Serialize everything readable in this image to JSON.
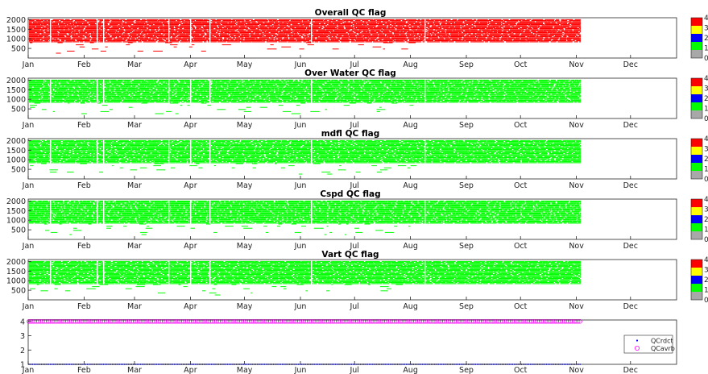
{
  "chart_data": [
    {
      "type": "heatmap",
      "title": "Overall QC flag",
      "x_tick_labels": [
        "Jan",
        "Feb",
        "Mar",
        "Apr",
        "May",
        "Jun",
        "Jul",
        "Aug",
        "Sep",
        "Oct",
        "Nov",
        "Dec"
      ],
      "y_ticks": [
        500,
        1000,
        1500,
        2000
      ],
      "ylim": [
        0,
        2100
      ],
      "data_extent": {
        "start": "Jan 1",
        "end": "Nov 2",
        "ymin": 250,
        "ymax": 2000,
        "core_ymin": 800
      },
      "dominant_flag": 4,
      "colorbar": {
        "ticks": [
          0,
          1,
          2,
          3,
          4
        ],
        "colors": [
          "#a8a8a8",
          "#00ff00",
          "#0000ff",
          "#ffff00",
          "#ff0000"
        ]
      }
    },
    {
      "type": "heatmap",
      "title": "Over Water QC flag",
      "x_tick_labels": [
        "Jan",
        "Feb",
        "Mar",
        "Apr",
        "May",
        "Jun",
        "Jul",
        "Aug",
        "Sep",
        "Oct",
        "Nov",
        "Dec"
      ],
      "y_ticks": [
        500,
        1000,
        1500,
        2000
      ],
      "ylim": [
        0,
        2100
      ],
      "data_extent": {
        "start": "Jan 1",
        "end": "Nov 2",
        "ymin": 250,
        "ymax": 2000,
        "core_ymin": 800
      },
      "dominant_flag": 1,
      "colorbar": {
        "ticks": [
          0,
          1,
          2,
          3,
          4
        ],
        "colors": [
          "#a8a8a8",
          "#00ff00",
          "#0000ff",
          "#ffff00",
          "#ff0000"
        ]
      }
    },
    {
      "type": "heatmap",
      "title": "mdfl QC flag",
      "x_tick_labels": [
        "Jan",
        "Feb",
        "Mar",
        "Apr",
        "May",
        "Jun",
        "Jul",
        "Aug",
        "Sep",
        "Oct",
        "Nov",
        "Dec"
      ],
      "y_ticks": [
        500,
        1000,
        1500,
        2000
      ],
      "ylim": [
        0,
        2100
      ],
      "data_extent": {
        "start": "Jan 1",
        "end": "Nov 2",
        "ymin": 250,
        "ymax": 2000,
        "core_ymin": 800
      },
      "dominant_flag": 1,
      "colorbar": {
        "ticks": [
          0,
          1,
          2,
          3,
          4
        ],
        "colors": [
          "#a8a8a8",
          "#00ff00",
          "#0000ff",
          "#ffff00",
          "#ff0000"
        ]
      }
    },
    {
      "type": "heatmap",
      "title": "Cspd QC flag",
      "x_tick_labels": [
        "Jan",
        "Feb",
        "Mar",
        "Apr",
        "May",
        "Jun",
        "Jul",
        "Aug",
        "Sep",
        "Oct",
        "Nov",
        "Dec"
      ],
      "y_ticks": [
        500,
        1000,
        1500,
        2000
      ],
      "ylim": [
        0,
        2100
      ],
      "data_extent": {
        "start": "Jan 1",
        "end": "Nov 2",
        "ymin": 250,
        "ymax": 2000,
        "core_ymin": 800
      },
      "dominant_flag": 1,
      "colorbar": {
        "ticks": [
          0,
          1,
          2,
          3,
          4
        ],
        "colors": [
          "#a8a8a8",
          "#00ff00",
          "#0000ff",
          "#ffff00",
          "#ff0000"
        ]
      }
    },
    {
      "type": "heatmap",
      "title": "Vart QC flag",
      "x_tick_labels": [
        "Jan",
        "Feb",
        "Mar",
        "Apr",
        "May",
        "Jun",
        "Jul",
        "Aug",
        "Sep",
        "Oct",
        "Nov",
        "Dec"
      ],
      "y_ticks": [
        500,
        1000,
        1500,
        2000
      ],
      "ylim": [
        0,
        2100
      ],
      "data_extent": {
        "start": "Jan 1",
        "end": "Nov 2",
        "ymin": 250,
        "ymax": 2000,
        "core_ymin": 800
      },
      "dominant_flag": 1,
      "colorbar": {
        "ticks": [
          0,
          1,
          2,
          3,
          4
        ],
        "colors": [
          "#a8a8a8",
          "#00ff00",
          "#0000ff",
          "#ffff00",
          "#ff0000"
        ]
      }
    },
    {
      "type": "scatter",
      "title": "",
      "x_tick_labels": [
        "Jan",
        "Feb",
        "Mar",
        "Apr",
        "May",
        "Jun",
        "Jul",
        "Aug",
        "Sep",
        "Oct",
        "Nov",
        "Dec"
      ],
      "y_ticks": [
        1,
        2,
        3,
        4
      ],
      "ylim": [
        1,
        4.1
      ],
      "legend_position": "bottom-right",
      "series": [
        {
          "name": "QCrdct",
          "marker": "dot",
          "color": "#0000ff",
          "x_range": [
            "Jan 1",
            "Nov 2"
          ],
          "value": 1
        },
        {
          "name": "QCavrb",
          "marker": "circle",
          "color": "#ff00ff",
          "x_range": [
            "Jan 1",
            "Nov 2"
          ],
          "value": 4
        }
      ]
    }
  ]
}
